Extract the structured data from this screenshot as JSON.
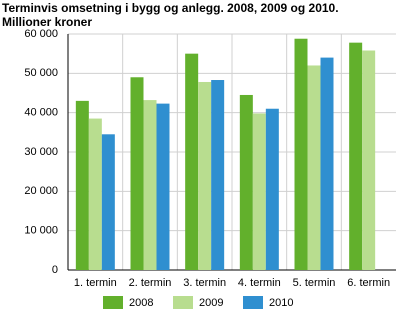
{
  "chart_data": {
    "type": "bar",
    "title": "Terminvis omsetning i bygg og anlegg. 2008, 2009 og 2010.",
    "subtitle": "Millioner kroner",
    "categories": [
      "1. termin",
      "2. termin",
      "3. termin",
      "4. termin",
      "5. termin",
      "6. termin"
    ],
    "series": [
      {
        "name": "2008",
        "color": "#62b02c",
        "values": [
          43000,
          49000,
          55000,
          44500,
          58800,
          57800
        ]
      },
      {
        "name": "2009",
        "color": "#b8dd8f",
        "values": [
          38500,
          43200,
          47800,
          39800,
          52000,
          55800
        ]
      },
      {
        "name": "2010",
        "color": "#2f8fd0",
        "values": [
          34500,
          42300,
          48300,
          41000,
          54000,
          null
        ]
      }
    ],
    "ylim": [
      0,
      60000
    ],
    "yticks": [
      0,
      {
        "value": 10000,
        "label": "10 000"
      },
      {
        "value": 20000,
        "label": "20 000"
      },
      {
        "value": 30000,
        "label": "30 000"
      },
      {
        "value": 40000,
        "label": "40 000"
      },
      {
        "value": 50000,
        "label": "50 000"
      },
      {
        "value": 60000,
        "label": "60 000"
      }
    ],
    "grid": true
  }
}
